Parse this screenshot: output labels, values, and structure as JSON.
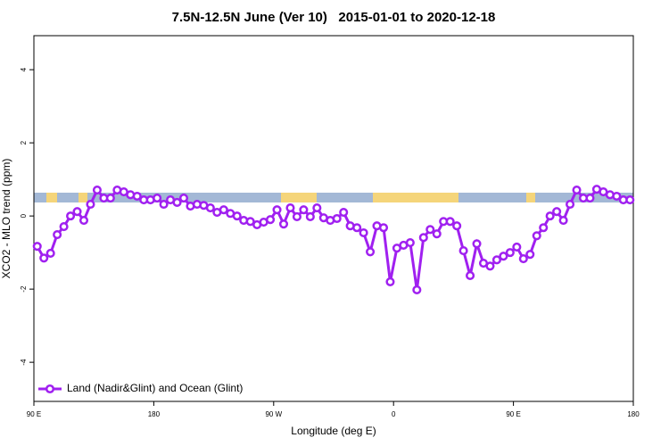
{
  "chart_data": {
    "type": "line",
    "title": "7.5N-12.5N June (Ver 10)   2015-01-01 to 2020-12-18",
    "x_label": "Longitude (deg E)",
    "y_label": "XCO2 - MLO trend (ppm)",
    "xlim": [
      90,
      540
    ],
    "xticks": [
      {
        "value": 90,
        "label": "90 E"
      },
      {
        "value": 180,
        "label": "180"
      },
      {
        "value": 270,
        "label": "90 W"
      },
      {
        "value": 360,
        "label": "0"
      },
      {
        "value": 450,
        "label": "90 E"
      },
      {
        "value": 540,
        "label": "180"
      }
    ],
    "ylim": [
      -5.07,
      4.93
    ],
    "yticks": [
      -4,
      -2,
      0,
      2,
      4
    ],
    "legend": "bottomleft",
    "x": [
      92.5,
      97.5,
      102.5,
      107.5,
      112.5,
      117.5,
      122.5,
      127.5,
      132.5,
      137.5,
      142.5,
      147.5,
      152.5,
      157.5,
      162.5,
      167.5,
      172.5,
      177.5,
      182.5,
      187.5,
      192.5,
      197.5,
      202.5,
      207.5,
      212.5,
      217.5,
      222.5,
      227.5,
      232.5,
      237.5,
      242.5,
      247.5,
      252.5,
      257.5,
      262.5,
      267.5,
      272.5,
      277.5,
      282.5,
      287.5,
      292.5,
      297.5,
      302.5,
      307.5,
      312.5,
      317.5,
      322.5,
      327.5,
      332.5,
      337.5,
      342.5,
      347.5,
      352.5,
      357.5,
      362.5,
      367.5,
      372.5,
      377.5,
      382.5,
      387.5,
      392.5,
      397.5,
      402.5,
      407.5,
      412.5,
      417.5,
      422.5,
      427.5,
      432.5,
      437.5,
      442.5,
      447.5,
      452.5,
      457.5,
      462.5,
      467.5,
      472.5,
      477.5,
      482.5,
      487.5,
      492.5,
      497.5,
      502.5,
      507.5,
      512.5,
      517.5,
      522.5,
      527.5,
      532.5,
      537.5
    ],
    "series": [
      {
        "name": "Land (Nadir&Glint) and Ocean (Glint)",
        "color": "#a020f0",
        "values": [
          -0.83,
          -1.15,
          -1.02,
          -0.51,
          -0.29,
          0.0,
          0.12,
          -0.12,
          0.32,
          0.71,
          0.49,
          0.49,
          0.71,
          0.66,
          0.58,
          0.54,
          0.44,
          0.44,
          0.49,
          0.32,
          0.44,
          0.37,
          0.49,
          0.27,
          0.32,
          0.29,
          0.22,
          0.1,
          0.17,
          0.07,
          0.0,
          -0.12,
          -0.15,
          -0.24,
          -0.17,
          -0.1,
          0.17,
          -0.22,
          0.22,
          -0.02,
          0.17,
          -0.02,
          0.22,
          -0.05,
          -0.12,
          -0.07,
          0.1,
          -0.27,
          -0.32,
          -0.46,
          -0.98,
          -0.27,
          -0.32,
          -1.8,
          -0.88,
          -0.8,
          -0.73,
          -2.02,
          -0.59,
          -0.37,
          -0.49,
          -0.15,
          -0.15,
          -0.27,
          -0.95,
          -1.63,
          -0.76,
          -1.29,
          -1.37,
          -1.2,
          -1.1,
          -1.0,
          -0.85,
          -1.17,
          -1.05,
          -0.54,
          -0.32,
          0.0,
          0.12,
          -0.12,
          0.32,
          0.71,
          0.49,
          0.49,
          0.73,
          0.66,
          0.58,
          0.54,
          0.44,
          0.44
        ]
      }
    ]
  }
}
